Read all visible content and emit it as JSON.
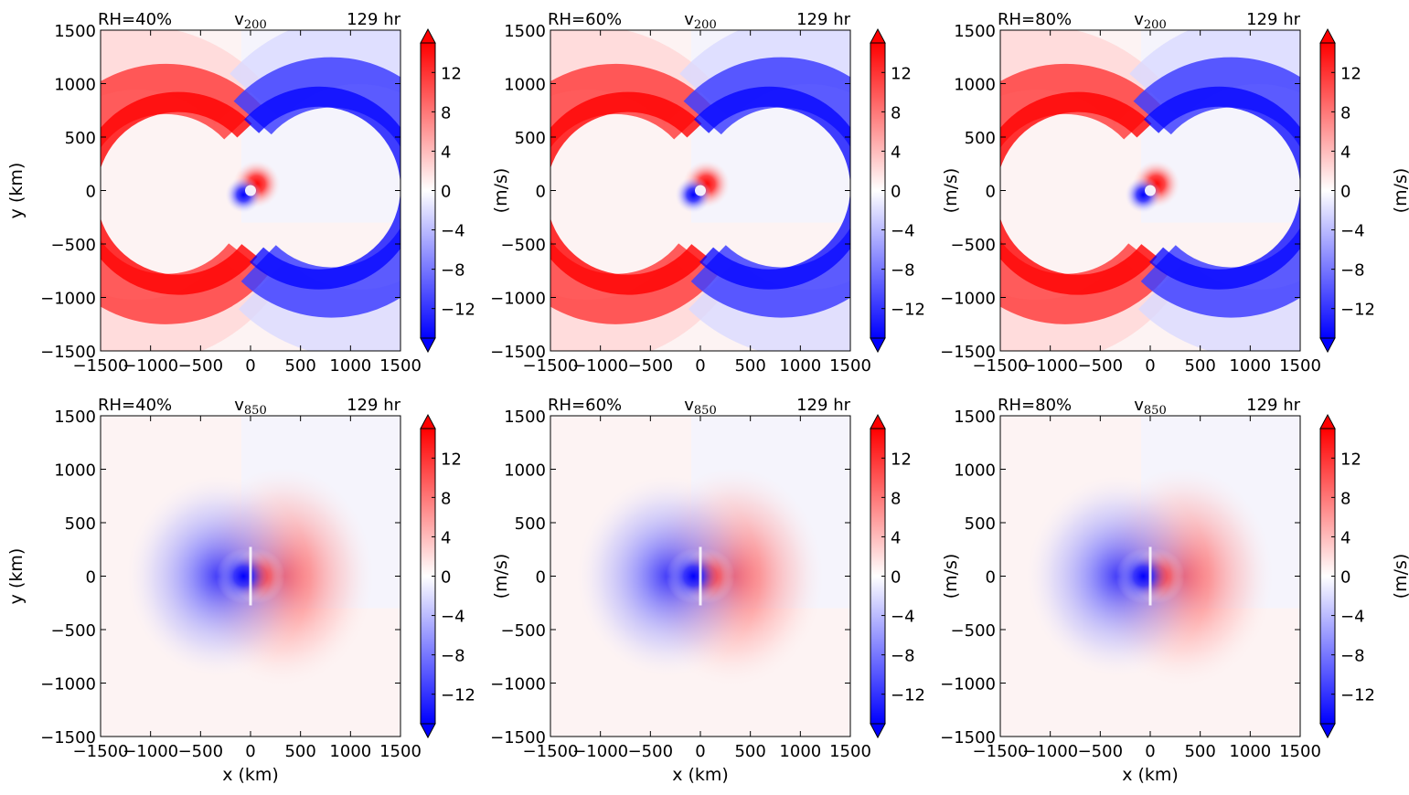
{
  "figure": {
    "tick_labels": [
      "-1500",
      "-1000",
      "-500",
      "0",
      "500",
      "1000",
      "1500"
    ],
    "x_ticks": [
      -1500,
      -1000,
      -500,
      0,
      500,
      1000,
      1500
    ],
    "y_ticks": [
      -1500,
      -1000,
      -500,
      0,
      500,
      1000,
      1500
    ],
    "xlabel": "x (km)",
    "ylabel": "y (km)",
    "colorbar": {
      "label": "(m/s)",
      "ticks": [
        12,
        8,
        4,
        0,
        -4,
        -8,
        -12
      ],
      "range": [
        -15,
        15
      ],
      "extend": "both",
      "colormap": "bwr",
      "colors": {
        "negative": "#0000ff",
        "zero": "#ffffff",
        "positive": "#ff0000"
      }
    }
  },
  "chart_data": [
    {
      "type": "heatmap",
      "id": "p1",
      "row": "top",
      "rh_label": "RH=40%",
      "var_main": "v",
      "var_sub": "200",
      "time_label": "129 hr",
      "xlim": [
        -1500,
        1500
      ],
      "ylim": [
        -1500,
        1500
      ],
      "level_hpa": 200
    },
    {
      "type": "heatmap",
      "id": "p2",
      "row": "top",
      "rh_label": "RH=60%",
      "var_main": "v",
      "var_sub": "200",
      "time_label": "129 hr",
      "xlim": [
        -1500,
        1500
      ],
      "ylim": [
        -1500,
        1500
      ],
      "level_hpa": 200
    },
    {
      "type": "heatmap",
      "id": "p3",
      "row": "top",
      "rh_label": "RH=80%",
      "var_main": "v",
      "var_sub": "200",
      "time_label": "129 hr",
      "xlim": [
        -1500,
        1500
      ],
      "ylim": [
        -1500,
        1500
      ],
      "level_hpa": 200
    },
    {
      "type": "heatmap",
      "id": "p4",
      "row": "bottom",
      "rh_label": "RH=40%",
      "var_main": "v",
      "var_sub": "850",
      "time_label": "129 hr",
      "xlim": [
        -1500,
        1500
      ],
      "ylim": [
        -1500,
        1500
      ],
      "level_hpa": 850
    },
    {
      "type": "heatmap",
      "id": "p5",
      "row": "bottom",
      "rh_label": "RH=60%",
      "var_main": "v",
      "var_sub": "850",
      "time_label": "129 hr",
      "xlim": [
        -1500,
        1500
      ],
      "ylim": [
        -1500,
        1500
      ],
      "level_hpa": 850
    },
    {
      "type": "heatmap",
      "id": "p6",
      "row": "bottom",
      "rh_label": "RH=80%",
      "var_main": "v",
      "var_sub": "850",
      "time_label": "129 hr",
      "xlim": [
        -1500,
        1500
      ],
      "ylim": [
        -1500,
        1500
      ],
      "level_hpa": 850
    }
  ]
}
